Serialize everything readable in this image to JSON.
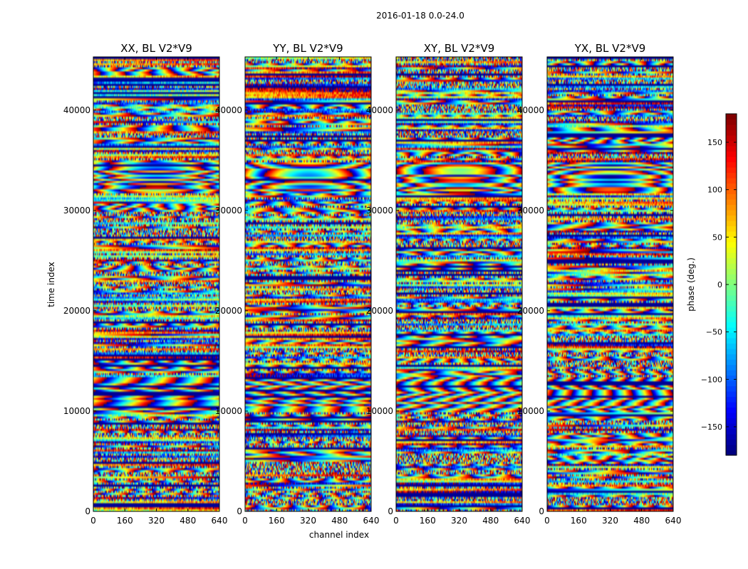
{
  "chart_data": {
    "type": "heatmap",
    "title": "2016-01-18 0.0-24.0",
    "xlabel": "channel index",
    "ylabel": "time index",
    "xlim": [
      0,
      640
    ],
    "ylim": [
      0,
      45300
    ],
    "x_ticks": [
      0,
      160,
      320,
      480,
      640
    ],
    "y_ticks": [
      0,
      10000,
      20000,
      30000,
      40000
    ],
    "colormap": "jet",
    "colorbar": {
      "label": "phase (deg.)",
      "range": [
        -180,
        180
      ],
      "ticks": [
        -150,
        -100,
        -50,
        0,
        50,
        100,
        150
      ],
      "tick_labels": [
        "−150",
        "−100",
        "−50",
        "0",
        "50",
        "100",
        "150"
      ]
    },
    "panels": [
      {
        "title": "XX, BL V2*V9"
      },
      {
        "title": "YY, BL V2*V9"
      },
      {
        "title": "XY, BL V2*V9"
      },
      {
        "title": "YX, BL V2*V9"
      }
    ]
  }
}
